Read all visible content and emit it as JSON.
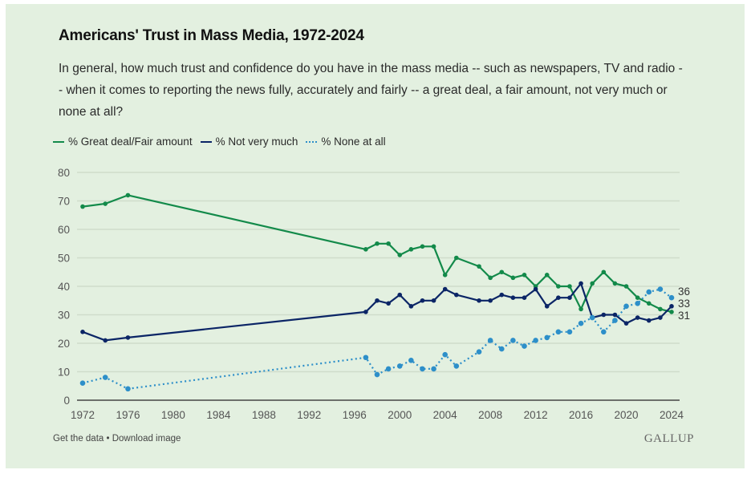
{
  "chart_data": {
    "type": "line",
    "title": "Americans' Trust in Mass Media, 1972-2024",
    "subtitle": "In general, how much trust and confidence do you have in the mass media -- such as newspapers, TV and radio -- when it comes to reporting the news fully, accurately and fairly -- a great deal, a fair amount, not very much or none at all?",
    "xlabel": "",
    "ylabel": "",
    "xlim": [
      1972,
      2024
    ],
    "ylim": [
      0,
      80
    ],
    "x_ticks": [
      1972,
      1976,
      1980,
      1984,
      1988,
      1992,
      1996,
      2000,
      2004,
      2008,
      2012,
      2016,
      2020,
      2024
    ],
    "y_ticks": [
      0,
      10,
      20,
      30,
      40,
      50,
      60,
      70,
      80
    ],
    "grid": "horizontal",
    "legend_position": "top-left",
    "x": [
      1972,
      1974,
      1976,
      1997,
      1998,
      1999,
      2000,
      2001,
      2002,
      2003,
      2004,
      2005,
      2007,
      2008,
      2009,
      2010,
      2011,
      2012,
      2013,
      2014,
      2015,
      2016,
      2017,
      2018,
      2019,
      2020,
      2021,
      2022,
      2023,
      2024
    ],
    "series": [
      {
        "name": "% Great deal/Fair amount",
        "color": "#138a4a",
        "style": "solid",
        "values": [
          68,
          69,
          72,
          53,
          55,
          55,
          51,
          53,
          54,
          54,
          44,
          50,
          47,
          43,
          45,
          43,
          44,
          40,
          44,
          40,
          40,
          32,
          41,
          45,
          41,
          40,
          36,
          34,
          32,
          31
        ],
        "end_label": "31"
      },
      {
        "name": "% Not very much",
        "color": "#0b2566",
        "style": "solid",
        "values": [
          24,
          21,
          22,
          31,
          35,
          34,
          37,
          33,
          35,
          35,
          39,
          37,
          35,
          35,
          37,
          36,
          36,
          39,
          33,
          36,
          36,
          41,
          29,
          30,
          30,
          27,
          29,
          28,
          29,
          33
        ],
        "end_label": "33"
      },
      {
        "name": "% None at all",
        "color": "#2d8fc9",
        "style": "dotted",
        "values": [
          6,
          8,
          4,
          15,
          9,
          11,
          12,
          14,
          11,
          11,
          16,
          12,
          17,
          21,
          18,
          21,
          19,
          21,
          22,
          24,
          24,
          27,
          29,
          24,
          28,
          33,
          34,
          38,
          39,
          36
        ],
        "end_label": "36"
      }
    ]
  },
  "footer": {
    "get_data": "Get the data",
    "separator": " • ",
    "download": "Download image",
    "brand": "GALLUP"
  },
  "colors": {
    "background": "#e3f0e0",
    "grid": "#cfdccb",
    "axis": "#444444"
  }
}
